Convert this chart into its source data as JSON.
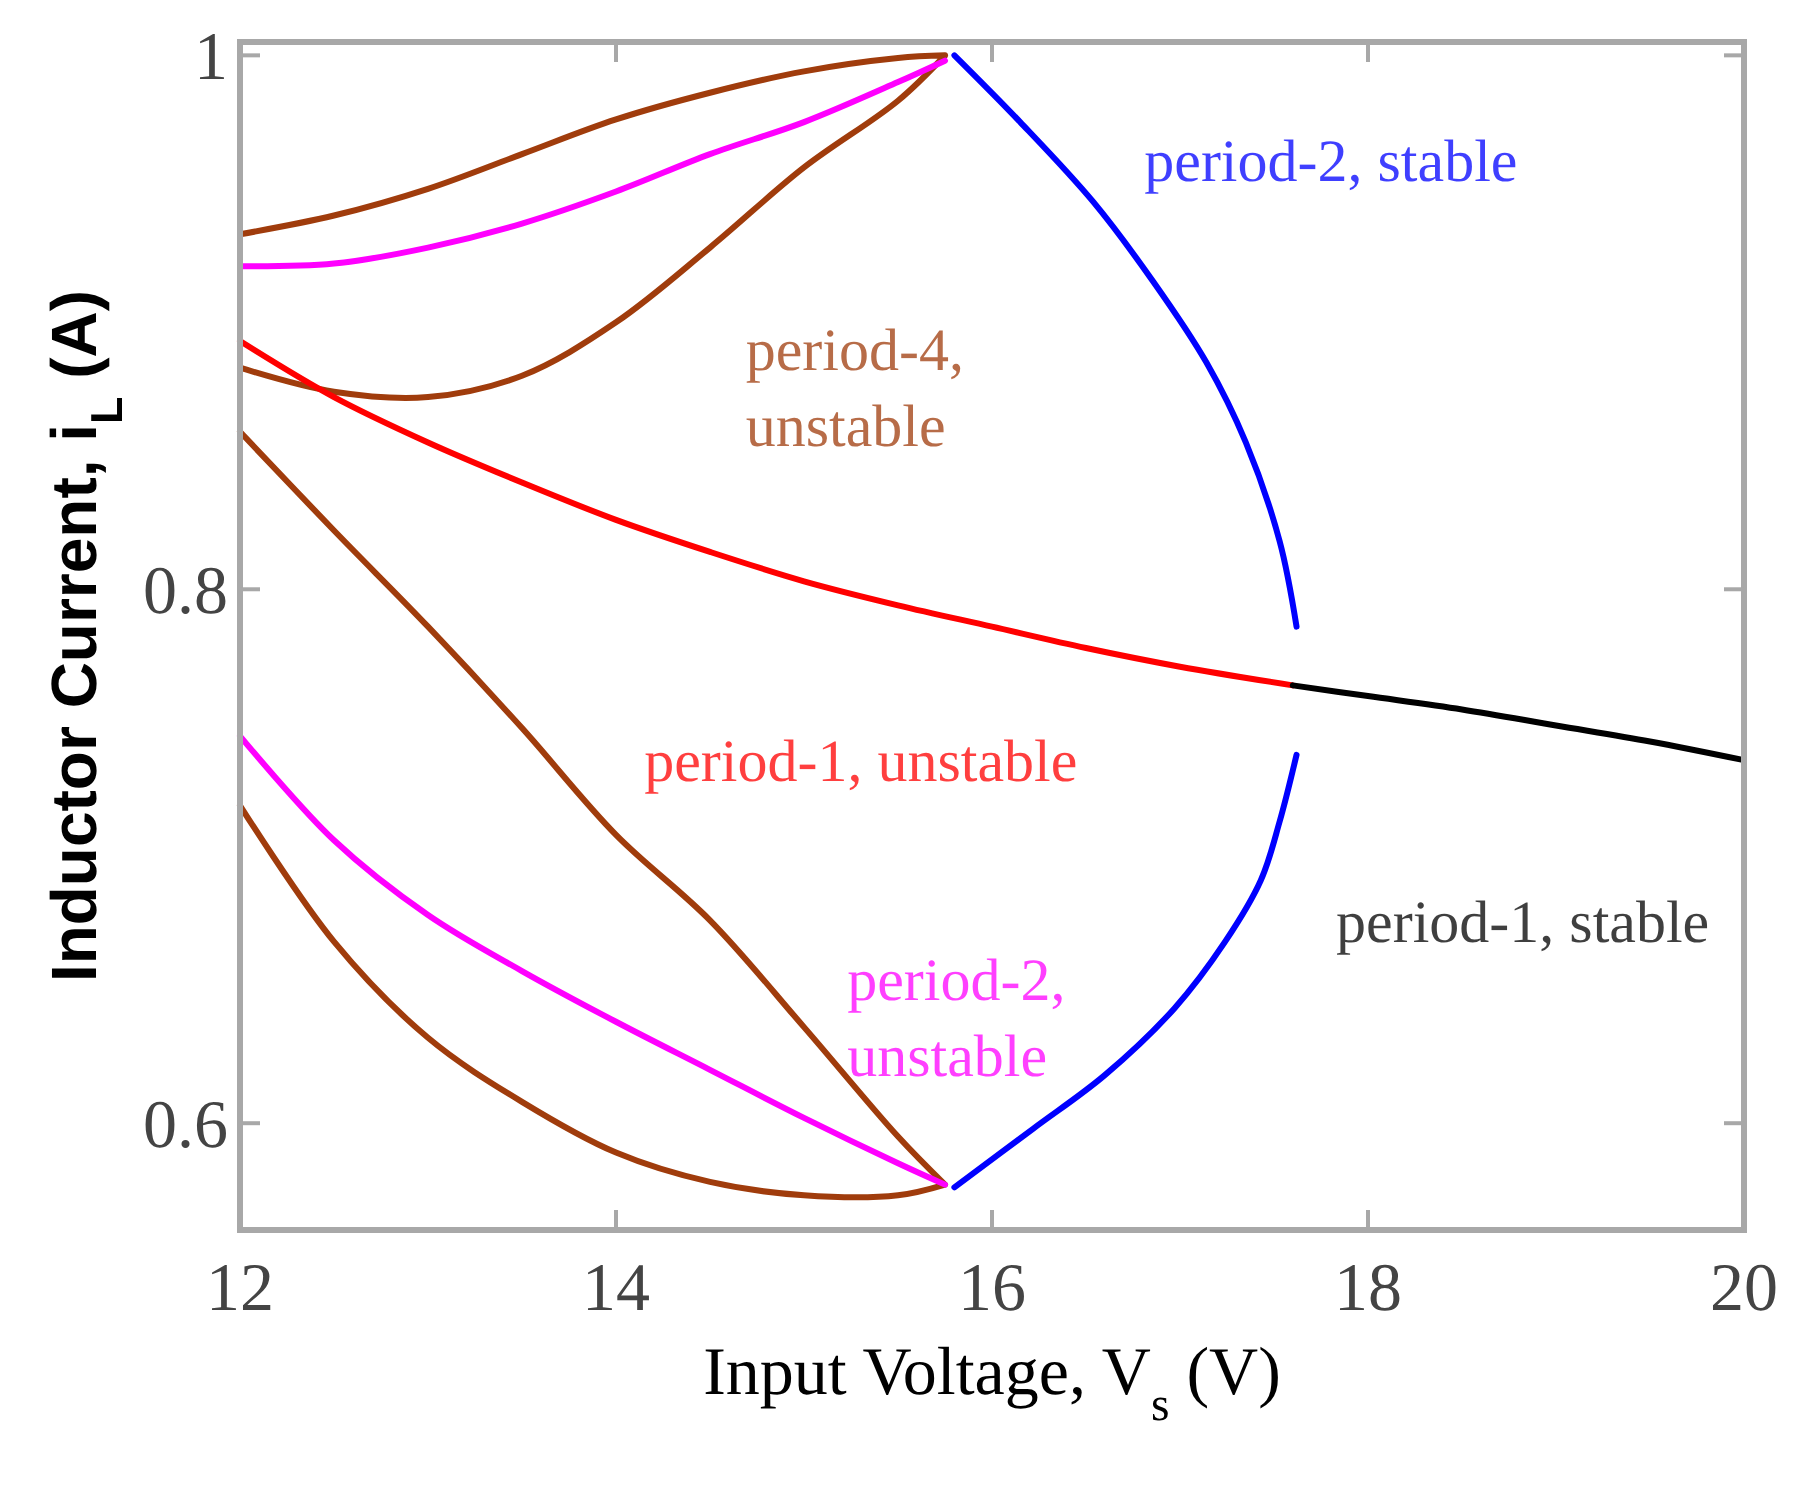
{
  "chart_data": {
    "type": "line",
    "xlabel": "Input Voltage, V$_{s}$ (V)",
    "ylabel": "Inductor Current, i$_{L}$ (A)",
    "xlim": [
      12,
      20
    ],
    "ylim": [
      0.56,
      1.005
    ],
    "xticks": [
      12,
      14,
      16,
      18,
      20
    ],
    "yticks": [
      0.6,
      0.8,
      1
    ],
    "grid": false,
    "marker": "none",
    "line_style": "solid",
    "series": [
      {
        "name": "period-4, unstable",
        "color": "#a03c0c",
        "x": [
          12,
          12.5,
          13,
          13.5,
          14,
          14.5,
          15,
          15.5,
          15.75,
          null,
          12,
          12.5,
          13,
          13.5,
          14,
          14.5,
          15,
          15.5,
          15.75,
          null,
          12,
          12.5,
          13,
          13.5,
          14,
          14.5,
          15,
          15.5,
          15.75,
          null,
          12,
          12.5,
          13,
          13.5,
          14,
          14.5,
          15,
          15.5,
          15.75
        ],
        "values": [
          0.933,
          0.94,
          0.95,
          0.963,
          0.976,
          0.986,
          0.994,
          0.999,
          1.0,
          null,
          0.883,
          0.874,
          0.872,
          0.88,
          0.9,
          0.928,
          0.958,
          0.983,
          1.0,
          null,
          0.859,
          0.822,
          0.786,
          0.748,
          0.708,
          0.676,
          0.636,
          0.595,
          0.577,
          null,
          0.719,
          0.668,
          0.632,
          0.608,
          0.589,
          0.578,
          0.573,
          0.573,
          0.577
        ]
      },
      {
        "name": "period-2, unstable",
        "color": "#ff00ff",
        "x": [
          12,
          12.5,
          13,
          13.5,
          14,
          14.5,
          15,
          15.5,
          15.75,
          null,
          12,
          12.5,
          13,
          13.5,
          14,
          14.5,
          15,
          15.5,
          15.75
        ],
        "values": [
          0.921,
          0.922,
          0.928,
          0.937,
          0.949,
          0.963,
          0.975,
          0.99,
          0.998,
          null,
          0.745,
          0.706,
          0.678,
          0.657,
          0.638,
          0.62,
          0.602,
          0.585,
          0.577
        ]
      },
      {
        "name": "period-1, unstable",
        "color": "#ff0000",
        "x": [
          12,
          12.5,
          13,
          13.5,
          14,
          14.5,
          15,
          15.5,
          16,
          16.5,
          17,
          17.6
        ],
        "values": [
          0.893,
          0.872,
          0.855,
          0.84,
          0.826,
          0.814,
          0.803,
          0.794,
          0.786,
          0.778,
          0.771,
          0.764
        ]
      },
      {
        "name": "period-1, stable",
        "color": "#000000",
        "x": [
          17.6,
          18,
          18.5,
          19,
          19.5,
          20
        ],
        "values": [
          0.764,
          0.76,
          0.755,
          0.749,
          0.743,
          0.736
        ]
      },
      {
        "name": "period-2, stable",
        "color": "#0000ff",
        "x": [
          15.8,
          16.15,
          16.54,
          16.86,
          17.14,
          17.35,
          17.53,
          17.62,
          null,
          17.62,
          17.53,
          17.43,
          17.24,
          16.97,
          16.6,
          16.22,
          15.8
        ],
        "values": [
          1.0,
          0.975,
          0.945,
          0.915,
          0.885,
          0.855,
          0.818,
          0.786,
          null,
          0.738,
          0.713,
          0.691,
          0.668,
          0.643,
          0.618,
          0.598,
          0.576
        ]
      }
    ]
  }
}
